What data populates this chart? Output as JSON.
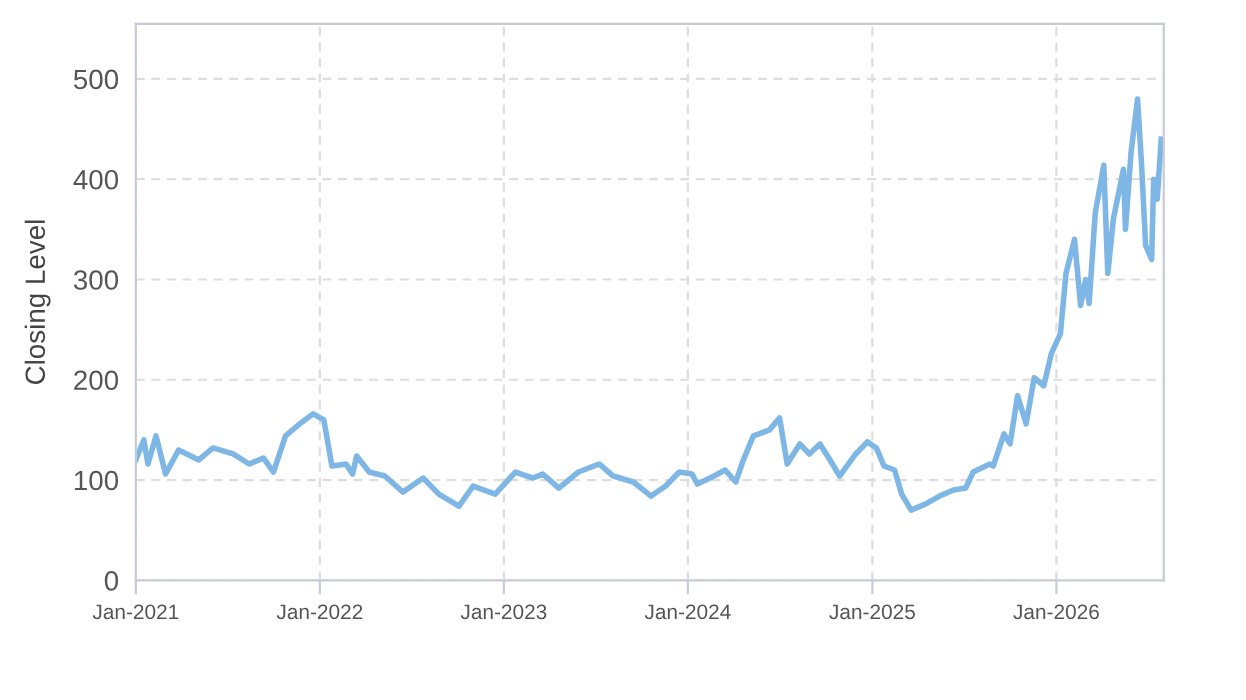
{
  "chart_data": {
    "type": "line",
    "ylabel": "Closing Level",
    "grid": true,
    "marker": "none",
    "line_style": "solid",
    "xlim": [
      "2021-01-01",
      "2026-08-02"
    ],
    "ylim": [
      0,
      555
    ],
    "yticks": [
      0,
      100,
      200,
      300,
      400,
      500
    ],
    "xticks": [
      {
        "value": "2021-01-01",
        "label": "Jan-2021"
      },
      {
        "value": "2022-01-01",
        "label": "Jan-2022"
      },
      {
        "value": "2023-01-01",
        "label": "Jan-2023"
      },
      {
        "value": "2024-01-01",
        "label": "Jan-2024"
      },
      {
        "value": "2025-01-01",
        "label": "Jan-2025"
      },
      {
        "value": "2026-01-01",
        "label": "Jan-2026"
      }
    ],
    "series": [
      {
        "color": "#7eb6e6",
        "x": [
          "2021-01-01",
          "2021-01-17",
          "2021-01-25",
          "2021-02-10",
          "2021-03-01",
          "2021-03-27",
          "2021-05-06",
          "2021-06-03",
          "2021-07-13",
          "2021-08-14",
          "2021-09-11",
          "2021-10-01",
          "2021-10-25",
          "2021-11-22",
          "2021-12-19",
          "2022-01-09",
          "2022-01-25",
          "2022-02-22",
          "2022-03-07",
          "2022-03-15",
          "2022-04-09",
          "2022-05-10",
          "2022-06-15",
          "2022-07-25",
          "2022-08-25",
          "2022-10-04",
          "2022-11-01",
          "2022-12-15",
          "2023-01-24",
          "2023-02-28",
          "2023-03-19",
          "2023-04-20",
          "2023-05-29",
          "2023-07-09",
          "2023-08-06",
          "2023-09-15",
          "2023-10-20",
          "2023-11-18",
          "2023-12-15",
          "2024-01-09",
          "2024-01-20",
          "2024-02-22",
          "2024-03-15",
          "2024-04-05",
          "2024-04-20",
          "2024-05-10",
          "2024-06-11",
          "2024-07-01",
          "2024-07-16",
          "2024-08-10",
          "2024-08-29",
          "2024-09-19",
          "2024-10-09",
          "2024-10-28",
          "2024-11-29",
          "2024-12-22",
          "2025-01-09",
          "2025-01-24",
          "2025-02-14",
          "2025-02-28",
          "2025-03-19",
          "2025-04-16",
          "2025-05-14",
          "2025-06-11",
          "2025-07-05",
          "2025-07-20",
          "2025-08-22",
          "2025-08-29",
          "2025-09-19",
          "2025-10-01",
          "2025-10-16",
          "2025-11-02",
          "2025-11-18",
          "2025-12-07",
          "2025-12-22",
          "2026-01-09",
          "2026-01-20",
          "2026-02-06",
          "2026-02-18",
          "2026-02-28",
          "2026-03-07",
          "2026-03-19",
          "2026-04-05",
          "2026-04-13",
          "2026-04-24",
          "2026-05-14",
          "2026-05-18",
          "2026-05-29",
          "2026-06-11",
          "2026-06-19",
          "2026-06-27",
          "2026-07-09",
          "2026-07-13",
          "2026-07-20",
          "2026-07-28"
        ],
        "values": [
          120,
          140,
          116,
          144,
          106,
          130,
          120,
          132,
          126,
          116,
          122,
          108,
          144,
          156,
          166,
          160,
          114,
          116,
          106,
          124,
          108,
          104,
          88,
          102,
          86,
          74,
          94,
          86,
          108,
          102,
          106,
          92,
          108,
          116,
          104,
          98,
          84,
          94,
          108,
          106,
          96,
          104,
          110,
          98,
          120,
          144,
          150,
          162,
          116,
          136,
          126,
          136,
          120,
          104,
          126,
          138,
          132,
          114,
          110,
          86,
          70,
          76,
          84,
          90,
          92,
          108,
          116,
          114,
          146,
          136,
          184,
          156,
          202,
          194,
          226,
          246,
          306,
          340,
          274,
          300,
          276,
          366,
          414,
          306,
          360,
          410,
          350,
          426,
          480,
          414,
          334,
          320,
          400,
          380,
          440
        ]
      }
    ]
  }
}
